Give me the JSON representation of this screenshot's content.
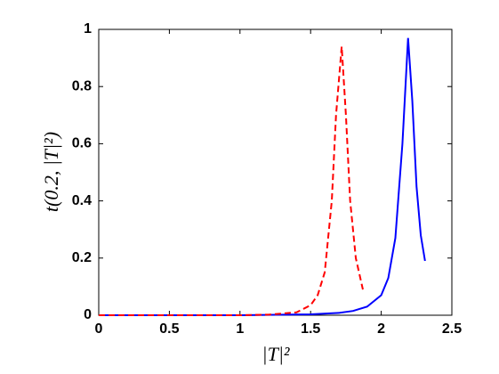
{
  "chart_data": {
    "type": "line",
    "xlabel": "|T|²",
    "ylabel": "t(0.2, |T|²)",
    "xlim": [
      0,
      2.5
    ],
    "xticks": [
      0,
      0.5,
      1,
      1.5,
      2,
      2.5
    ],
    "ylim": [
      0,
      1
    ],
    "yticks": [
      0,
      0.2,
      0.4,
      0.6,
      0.8,
      1
    ],
    "box": true,
    "series": [
      {
        "color": "#0000ff",
        "linestyle": "solid",
        "x": [
          0,
          0.5,
          1,
          1.5,
          1.7,
          1.8,
          1.9,
          2.0,
          2.05,
          2.1,
          2.15,
          2.19,
          2.22,
          2.25,
          2.28,
          2.31
        ],
        "values": [
          0,
          0,
          0,
          0.003,
          0.008,
          0.015,
          0.03,
          0.07,
          0.13,
          0.27,
          0.6,
          0.97,
          0.75,
          0.45,
          0.28,
          0.19
        ]
      },
      {
        "color": "#ff0000",
        "linestyle": "dashed",
        "x": [
          0,
          0.5,
          1,
          1.2,
          1.4,
          1.5,
          1.55,
          1.6,
          1.65,
          1.68,
          1.72,
          1.75,
          1.78,
          1.82,
          1.87
        ],
        "values": [
          0,
          0,
          0,
          0.002,
          0.01,
          0.035,
          0.07,
          0.15,
          0.4,
          0.7,
          0.94,
          0.7,
          0.4,
          0.2,
          0.09
        ]
      }
    ]
  }
}
